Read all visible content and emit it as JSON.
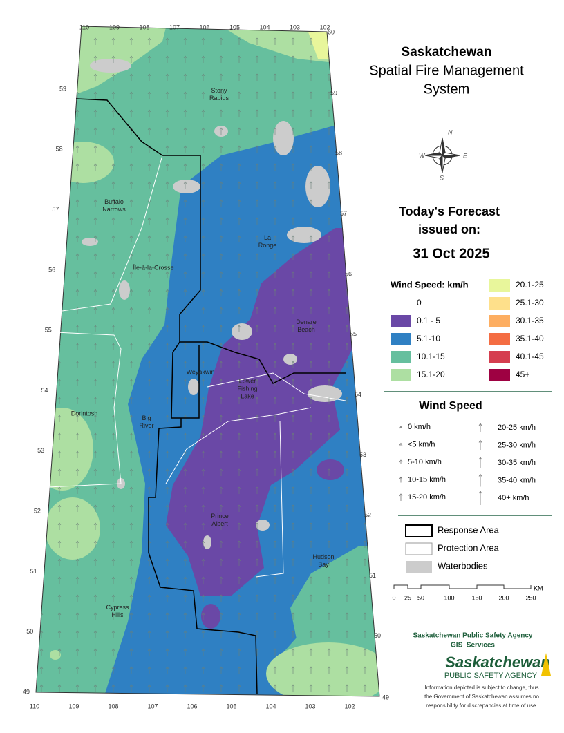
{
  "title": {
    "line1": "Saskatchewan",
    "line2": "Spatial Fire Management",
    "line3": "System"
  },
  "compass": {
    "n": "N",
    "e": "E",
    "s": "S",
    "w": "W"
  },
  "forecast": {
    "line1": "Today's Forecast",
    "line2": "issued on:",
    "date": "31 Oct 2025"
  },
  "wind_legend": {
    "title": "Wind Speed: km/h",
    "classes": [
      {
        "label": "0",
        "color": "#ffffff"
      },
      {
        "label": "0.1 - 5",
        "color": "#6a48a6"
      },
      {
        "label": "5.1-10",
        "color": "#2f80c3"
      },
      {
        "label": "10.1-15",
        "color": "#66bf9e"
      },
      {
        "label": "15.1-20",
        "color": "#addfa2"
      },
      {
        "label": "20.1-25",
        "color": "#e8f69b"
      },
      {
        "label": "25.1-30",
        "color": "#fee08b"
      },
      {
        "label": "30.1-35",
        "color": "#fdae61"
      },
      {
        "label": "35.1-40",
        "color": "#f46d43"
      },
      {
        "label": "40.1-45",
        "color": "#d53e4f"
      },
      {
        "label": "45+",
        "color": "#9e0142"
      }
    ]
  },
  "arrow_legend": {
    "title": "Wind Speed",
    "items": [
      "0 km/h",
      "<5 km/h",
      "5-10 km/h",
      "10-15 km/h",
      "15-20 km/h",
      "20-25 km/h",
      "25-30 km/h",
      "30-35 km/h",
      "35-40 km/h",
      "40+ km/h"
    ]
  },
  "layers": [
    {
      "label": "Response Area",
      "color": "#000000"
    },
    {
      "label": "Protection Area",
      "color": "#ffffff"
    },
    {
      "label": "Waterbodies",
      "color": "#cccccc"
    }
  ],
  "scale": {
    "ticks": [
      "0",
      "25",
      "50",
      "100",
      "150",
      "200",
      "250"
    ],
    "unit": "KM"
  },
  "agency": {
    "line1": "Saskatchewan Public Safety Agency",
    "line2": "GIS  Services",
    "logo_line1": "Saskatchewan",
    "logo_line2": "PUBLIC SAFETY AGENCY",
    "disclaimer": [
      "Information depicted is subject to change, thus",
      "the Government of Saskatchewan assumes no",
      "responsibility for discrepancies at time of use."
    ]
  },
  "map": {
    "longitudes_top": [
      110,
      109,
      108,
      107,
      106,
      105,
      104,
      103,
      102
    ],
    "lat_top": 60,
    "longitudes_bottom": [
      110,
      109,
      108,
      107,
      106,
      105,
      104,
      103,
      102
    ],
    "lat_bottom": 49,
    "latitudes_left": [
      59,
      58,
      57,
      56,
      55,
      54,
      53,
      52,
      51,
      50,
      49
    ],
    "latitudes_right": [
      59,
      58,
      57,
      56,
      55,
      54,
      53,
      52,
      51,
      50
    ],
    "places": [
      {
        "lines": [
          "Stony",
          "Rapids"
        ]
      },
      {
        "lines": [
          "Buffalo",
          "Narrows"
        ]
      },
      {
        "lines": [
          "La",
          "Ronge"
        ]
      },
      {
        "lines": [
          "Île-à-la-Crosse"
        ]
      },
      {
        "lines": [
          "Denare",
          "Beach"
        ]
      },
      {
        "lines": [
          "Weyakwin"
        ]
      },
      {
        "lines": [
          "Lower",
          "Fishing",
          "Lake"
        ]
      },
      {
        "lines": [
          "Dorintosh"
        ]
      },
      {
        "lines": [
          "Big",
          "River"
        ]
      },
      {
        "lines": [
          "Prince",
          "Albert"
        ]
      },
      {
        "lines": [
          "Hudson",
          "Bay"
        ]
      },
      {
        "lines": [
          "Cypress",
          "Hills"
        ]
      }
    ]
  }
}
